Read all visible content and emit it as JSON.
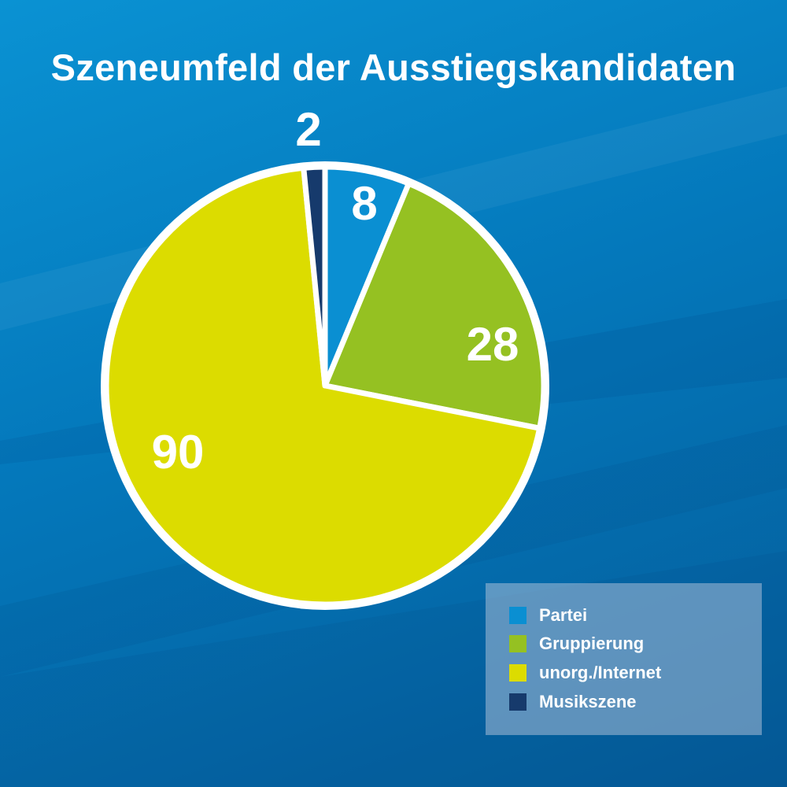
{
  "chart_data": {
    "type": "pie",
    "title": "Szeneumfeld der Ausstiegskandidaten",
    "categories": [
      "Partei",
      "Gruppierung",
      "unorg./Internet",
      "Musikszene"
    ],
    "values": [
      8,
      28,
      90,
      2
    ],
    "data_labels": [
      "8",
      "28",
      "90",
      "2"
    ],
    "colors": [
      "#0a8fd2",
      "#95c122",
      "#dcdc00",
      "#163a6c"
    ],
    "legend": "bottom-right",
    "slice_border_color": "#ffffff"
  }
}
